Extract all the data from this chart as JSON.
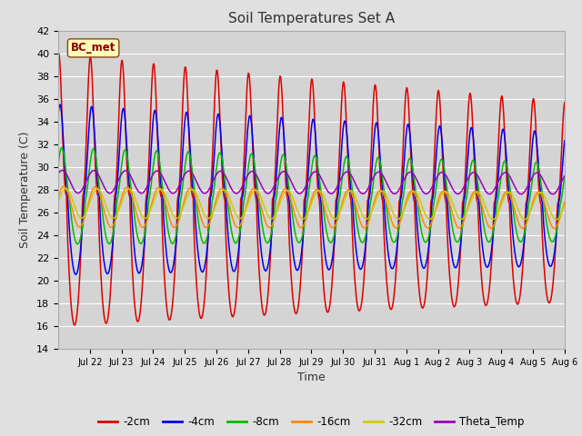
{
  "title": "Soil Temperatures Set A",
  "xlabel": "Time",
  "ylabel": "Soil Temperature (C)",
  "ylim": [
    14,
    42
  ],
  "fig_bg": "#e0e0e0",
  "plot_bg": "#d4d4d4",
  "series": [
    {
      "label": "-2cm",
      "color": "#dd0000"
    },
    {
      "label": "-4cm",
      "color": "#0000ee"
    },
    {
      "label": "-8cm",
      "color": "#00bb00"
    },
    {
      "label": "-16cm",
      "color": "#ff8800"
    },
    {
      "label": "-32cm",
      "color": "#cccc00"
    },
    {
      "label": "Theta_Temp",
      "color": "#9900bb"
    }
  ],
  "tick_labels": [
    "Jul 22",
    "Jul 23",
    "Jul 24",
    "Jul 25",
    "Jul 26",
    "Jul 27",
    "Jul 28",
    "Jul 29",
    "Jul 30",
    "Jul 31",
    "Aug 1",
    "Aug 2",
    "Aug 3",
    "Aug 4",
    "Aug 5",
    "Aug 6"
  ],
  "annotation_text": "BC_met",
  "n_points": 800
}
